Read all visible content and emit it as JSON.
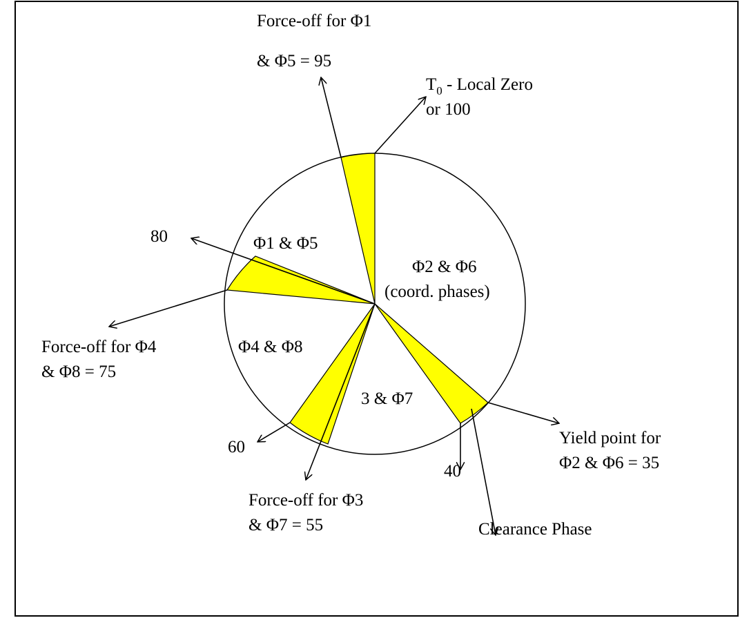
{
  "labels": {
    "forceoff_phi1": [
      "Force-off for Φ1",
      "& Φ5 = 95"
    ],
    "t0": {
      "main": "T",
      "sub": "0",
      "rest": " - Local Zero",
      "line2": "or 100"
    },
    "eighty": "80",
    "phi1_phi5": "Φ1 & Φ5",
    "phi2_phi6": [
      "Φ2 & Φ6",
      "(coord. phases)"
    ],
    "phi4_phi8": "Φ4 & Φ8",
    "phi3_phi7": "3 & Φ7",
    "forceoff_phi4": [
      "Force-off for Φ4",
      "& Φ8 = 75"
    ],
    "sixty": "60",
    "forty": "40",
    "yield_point": [
      "Yield point for",
      "Φ2 & Φ6 = 35"
    ],
    "forceoff_phi3": [
      "Force-off for Φ3",
      "& Φ7 = 55"
    ],
    "clearance": "Clearance Phase"
  }
}
